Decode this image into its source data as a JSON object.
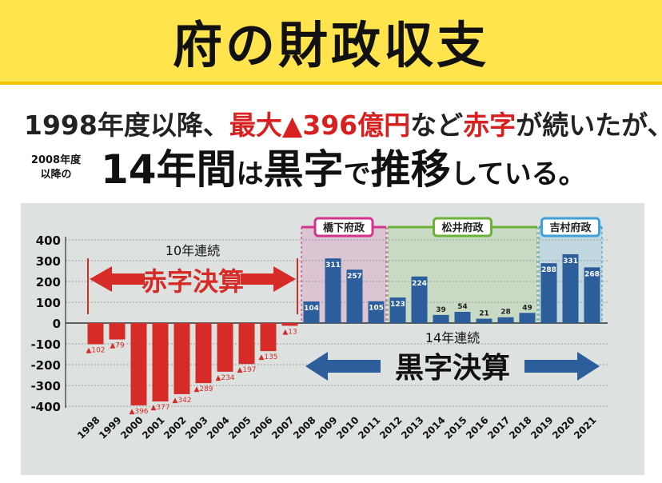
{
  "header": {
    "title": "府の財政収支"
  },
  "subtitle": {
    "line1_a": "1998年度以降、",
    "line1_red": "最大▲396億円",
    "line1_b": "など",
    "line1_red2": "赤字",
    "line1_c": "が続いたが、",
    "line2_small_1": "2008年度",
    "line2_small_2": "以降の",
    "line2_big_a": "14年間",
    "line2_big_b": "は",
    "line2_big_c": "黒字",
    "line2_big_d": "で",
    "line2_big_e": "推移",
    "line2_big_f": "している。"
  },
  "chart_data": {
    "type": "bar",
    "categories": [
      "1998",
      "1999",
      "2000",
      "2001",
      "2002",
      "2003",
      "2004",
      "2005",
      "2006",
      "2007",
      "2008",
      "2009",
      "2010",
      "2011",
      "2012",
      "2013",
      "2014",
      "2015",
      "2016",
      "2017",
      "2018",
      "2019",
      "2020",
      "2021"
    ],
    "values": [
      -102,
      -79,
      -396,
      -377,
      -342,
      -289,
      -234,
      -197,
      -135,
      -13,
      104,
      311,
      257,
      105,
      123,
      224,
      39,
      54,
      21,
      28,
      49,
      288,
      331,
      268
    ],
    "value_labels": [
      "▲102",
      "▲79",
      "▲396",
      "▲377",
      "▲342",
      "▲289",
      "▲234",
      "▲197",
      "▲135",
      "▲13",
      "104",
      "311",
      "257",
      "105",
      "123",
      "224",
      "39",
      "54",
      "21",
      "28",
      "49",
      "288",
      "331",
      "268"
    ],
    "ylim": [
      -400,
      400
    ],
    "yticks": [
      "400",
      "300",
      "200",
      "100",
      "0",
      "-100",
      "-200",
      "-300",
      "-400"
    ],
    "grid": true,
    "colors": {
      "deficit": "#d62b27",
      "surplus": "#2c5e9c",
      "hashimoto": "#d6338f",
      "matsui": "#6cb23a",
      "yoshimura": "#3ea0db"
    },
    "annotations": {
      "deficit_count": "10年連続",
      "deficit_label": "赤字決算",
      "surplus_count": "14年連続",
      "surplus_label": "黒字決算",
      "eras": [
        "橋下府政",
        "松井府政",
        "吉村府政"
      ]
    }
  }
}
